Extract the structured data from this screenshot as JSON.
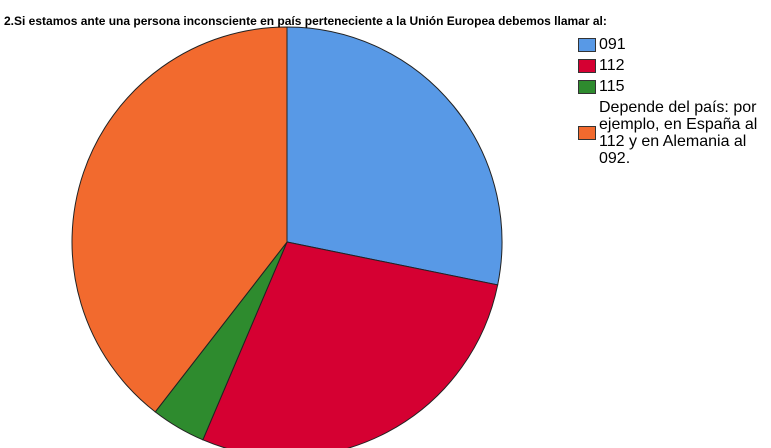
{
  "chart_data": {
    "type": "pie",
    "title": "2.Si estamos ante una persona inconsciente en país perteneciente a la Unión Europea debemos llamar al:",
    "categories": [
      "091",
      "112",
      "115",
      "Depende del país: por ejemplo, en España al 112 y en Alemania al 092."
    ],
    "values": [
      28.2,
      28.2,
      4.1,
      39.5
    ],
    "colors": [
      "#5899e6",
      "#d50032",
      "#2e8b2e",
      "#f26a2e"
    ],
    "start_angle": 0,
    "direction": "clockwise",
    "legend": "right"
  }
}
